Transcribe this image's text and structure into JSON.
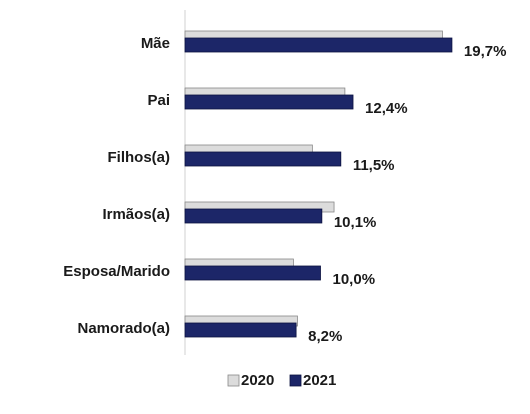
{
  "chart_data": {
    "type": "bar",
    "orientation": "horizontal",
    "categories": [
      "Mãe",
      "Pai",
      "Filhos(a)",
      "Irmãos(a)",
      "Esposa/Marido",
      "Namorado(a)"
    ],
    "series": [
      {
        "name": "2020",
        "color": "#dcdcdc",
        "values": [
          19.0,
          11.8,
          9.4,
          11.0,
          8.0,
          8.3
        ]
      },
      {
        "name": "2021",
        "color": "#1c2668",
        "values": [
          19.7,
          12.4,
          11.5,
          10.1,
          10.0,
          8.2
        ],
        "value_labels": [
          "19,7%",
          "12,4%",
          "11,5%",
          "10,1%",
          "10,0%",
          "8,2%"
        ]
      }
    ],
    "xlim": [
      0,
      20
    ],
    "legend": "bottom"
  }
}
